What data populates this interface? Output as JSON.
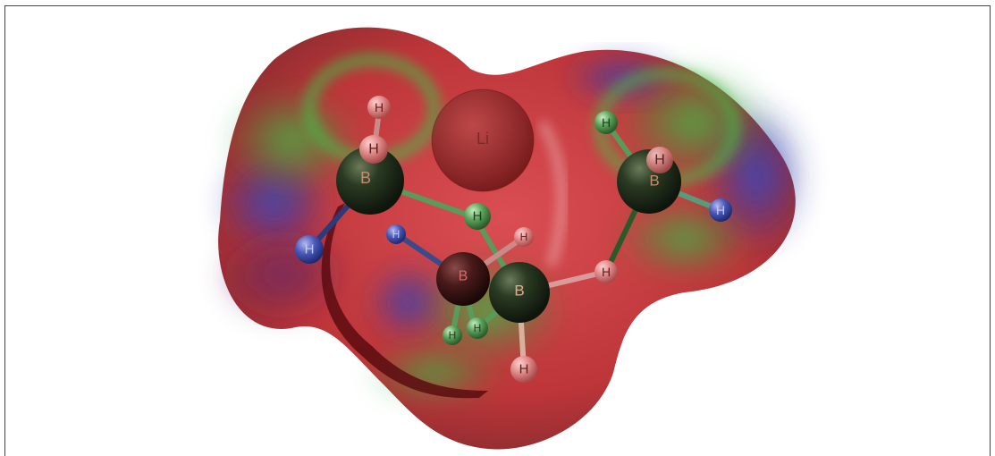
{
  "viewer": {
    "colors": {
      "surface_negative": "#c0262a",
      "surface_neutral": "#35a83a",
      "surface_positive": "#2535a8",
      "boron": "#243520",
      "hydrogen": "#e79a9a",
      "lithium": "#8a1a1a"
    }
  },
  "atoms": [
    {
      "id": "li",
      "label": "Li"
    },
    {
      "id": "b1",
      "label": "B"
    },
    {
      "id": "b2",
      "label": "B"
    },
    {
      "id": "b3",
      "label": "B"
    },
    {
      "id": "b4",
      "label": "B"
    },
    {
      "id": "h1",
      "label": "H"
    },
    {
      "id": "h2",
      "label": "H"
    },
    {
      "id": "h3",
      "label": "H"
    },
    {
      "id": "h4",
      "label": "H"
    },
    {
      "id": "h5",
      "label": "H"
    },
    {
      "id": "h6",
      "label": "H"
    },
    {
      "id": "h7",
      "label": "H"
    },
    {
      "id": "h8",
      "label": "H"
    },
    {
      "id": "h9",
      "label": "H"
    },
    {
      "id": "h10",
      "label": "H"
    },
    {
      "id": "h11",
      "label": "H"
    },
    {
      "id": "h12",
      "label": "H"
    },
    {
      "id": "h13",
      "label": "H"
    },
    {
      "id": "h14",
      "label": "H"
    }
  ]
}
